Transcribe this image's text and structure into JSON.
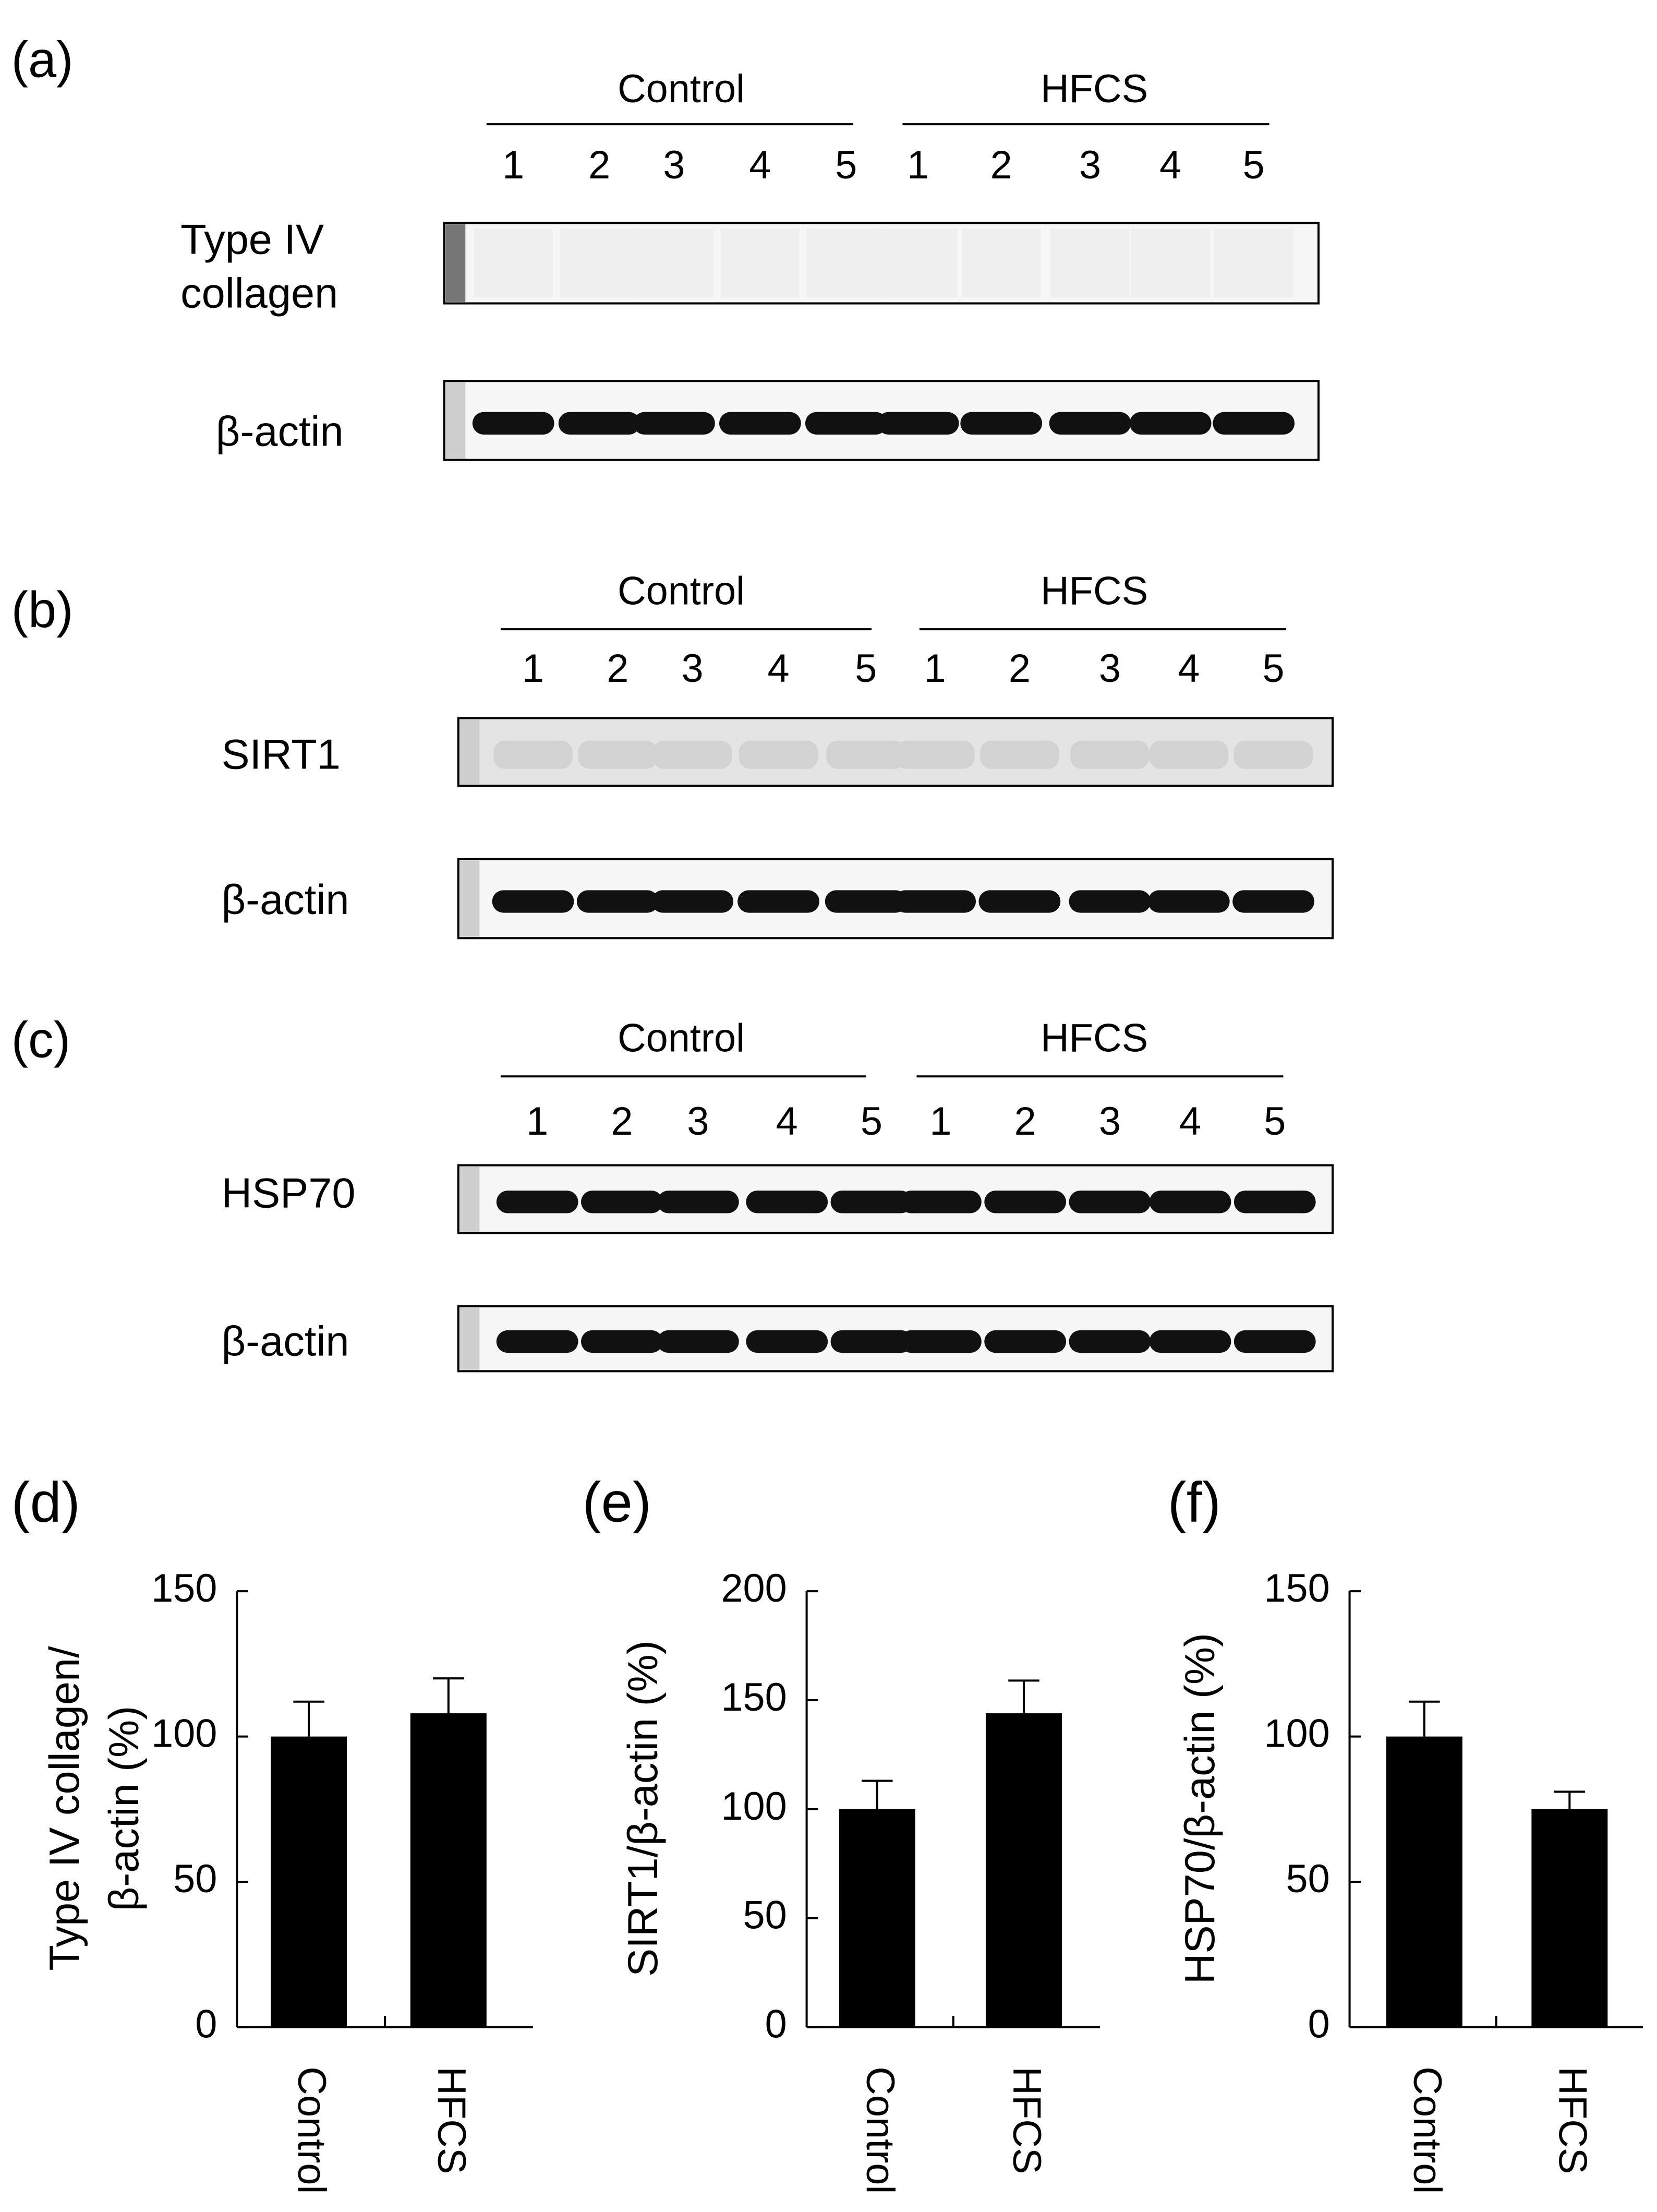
{
  "blots": [
    {
      "label": "(a)",
      "groups": [
        "Control",
        "HFCS"
      ],
      "lanes": [
        1,
        2,
        3,
        4,
        5,
        1,
        2,
        3,
        4,
        5
      ],
      "rows": [
        [
          "Type IV",
          "collagen"
        ],
        "β-actin"
      ]
    },
    {
      "label": "(b)",
      "groups": [
        "Control",
        "HFCS"
      ],
      "lanes": [
        1,
        2,
        3,
        4,
        5,
        1,
        2,
        3,
        4,
        5
      ],
      "rows": [
        "SIRT1",
        "β-actin"
      ]
    },
    {
      "label": "(c)",
      "groups": [
        "Control",
        "HFCS"
      ],
      "lanes": [
        1,
        2,
        3,
        4,
        5,
        1,
        2,
        3,
        4,
        5
      ],
      "rows": [
        "HSP70",
        "β-actin"
      ]
    }
  ],
  "chart_data": [
    {
      "type": "bar",
      "title": "(d)",
      "ylabel": [
        "Type IV collagen/",
        "β-actin (%)"
      ],
      "categories": [
        "Control",
        "HFCS"
      ],
      "values": [
        100,
        108
      ],
      "errors": [
        12,
        12
      ],
      "color": "#000000",
      "ylim": [
        0,
        150
      ],
      "yticks": [
        0,
        50,
        100,
        150
      ]
    },
    {
      "type": "bar",
      "title": "(e)",
      "ylabel": "SIRT1/β-actin (%)",
      "categories": [
        "Control",
        "HFCS"
      ],
      "values": [
        100,
        144
      ],
      "errors": [
        13,
        15
      ],
      "color": "#000000",
      "ylim": [
        0,
        200
      ],
      "yticks": [
        0,
        50,
        100,
        150,
        200
      ]
    },
    {
      "type": "bar",
      "title": "(f)",
      "ylabel": "HSP70/β-actin (%)",
      "categories": [
        "Control",
        "HFCS"
      ],
      "values": [
        100,
        75
      ],
      "errors": [
        12,
        6
      ],
      "color": "#000000",
      "ylim": [
        0,
        150
      ],
      "yticks": [
        0,
        50,
        100,
        150
      ]
    }
  ]
}
